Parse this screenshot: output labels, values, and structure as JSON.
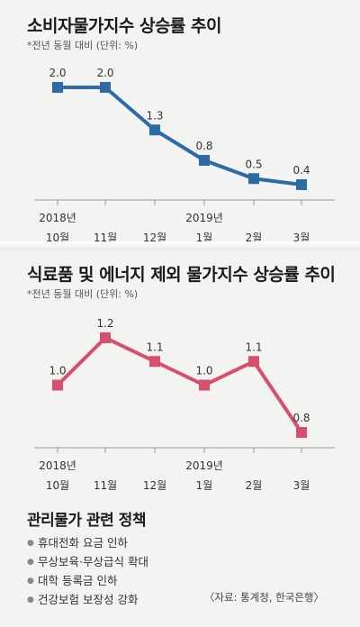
{
  "chart_data": [
    {
      "type": "line",
      "title": "소비자물가지수 상승률 추이",
      "subtitle": "*전년 동월 대비 (단위: %)",
      "categories": [
        [
          "2018년",
          "10월"
        ],
        [
          "",
          "11월"
        ],
        [
          "",
          "12월"
        ],
        [
          "2019년",
          "1월"
        ],
        [
          "",
          "2월"
        ],
        [
          "",
          "3월"
        ]
      ],
      "values": [
        2.0,
        2.0,
        1.3,
        0.8,
        0.5,
        0.4
      ],
      "value_labels": [
        "2.0",
        "2.0",
        "1.3",
        "0.8",
        "0.5",
        "0.4"
      ],
      "color": "#2e6aa6",
      "ylim": [
        0,
        2.5
      ],
      "grid": false
    },
    {
      "type": "line",
      "title": "식료품 및 에너지 제외 물가지수 상승률 추이",
      "subtitle": "*전년 동월 대비 (단위: %)",
      "categories": [
        [
          "2018년",
          "10월"
        ],
        [
          "",
          "11월"
        ],
        [
          "",
          "12월"
        ],
        [
          "2019년",
          "1월"
        ],
        [
          "",
          "2월"
        ],
        [
          "",
          "3월"
        ]
      ],
      "values": [
        1.0,
        1.2,
        1.1,
        1.0,
        1.1,
        0.8
      ],
      "value_labels": [
        "1.0",
        "1.2",
        "1.1",
        "1.0",
        "1.1",
        "0.8"
      ],
      "color": "#d94e6d",
      "ylim": [
        0.7,
        1.3
      ],
      "grid": false
    }
  ],
  "policy": {
    "title": "관리물가 관련 정책",
    "items": [
      "휴대전화 요금 인하",
      "무상보육·무상급식 확대",
      "대학 등록금 인하",
      "건강보험 보장성 강화"
    ],
    "bullet": "●"
  },
  "source": "〈자료: 통계청, 한국은행〉"
}
